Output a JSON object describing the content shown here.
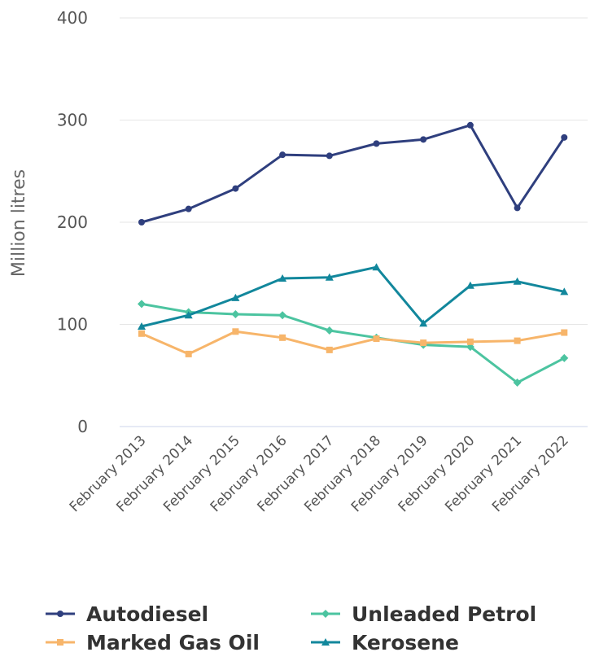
{
  "chart_data": {
    "type": "line",
    "title": "",
    "xlabel": "",
    "ylabel": "Million litres",
    "ylim": [
      0,
      400
    ],
    "yticks": [
      0,
      100,
      200,
      300,
      400
    ],
    "grid": true,
    "legend_position": "bottom",
    "categories": [
      "February 2013",
      "February 2014",
      "February 2015",
      "February 2016",
      "February 2017",
      "February 2018",
      "February 2019",
      "February 2020",
      "February 2021",
      "February 2022"
    ],
    "series": [
      {
        "name": "Autodiesel",
        "color": "#2f3f7e",
        "marker": "circle",
        "values": [
          200,
          213,
          233,
          266,
          265,
          277,
          281,
          295,
          214,
          283
        ]
      },
      {
        "name": "Unleaded Petrol",
        "color": "#4cc4a0",
        "marker": "diamond",
        "values": [
          120,
          112,
          110,
          109,
          94,
          87,
          80,
          78,
          43,
          67
        ]
      },
      {
        "name": "Marked Gas Oil",
        "color": "#f7b56a",
        "marker": "square",
        "values": [
          91,
          71,
          93,
          87,
          75,
          86,
          82,
          83,
          84,
          92
        ]
      },
      {
        "name": "Kerosene",
        "color": "#12879c",
        "marker": "triangle",
        "values": [
          98,
          109,
          126,
          145,
          146,
          156,
          101,
          138,
          142,
          132
        ]
      }
    ]
  }
}
